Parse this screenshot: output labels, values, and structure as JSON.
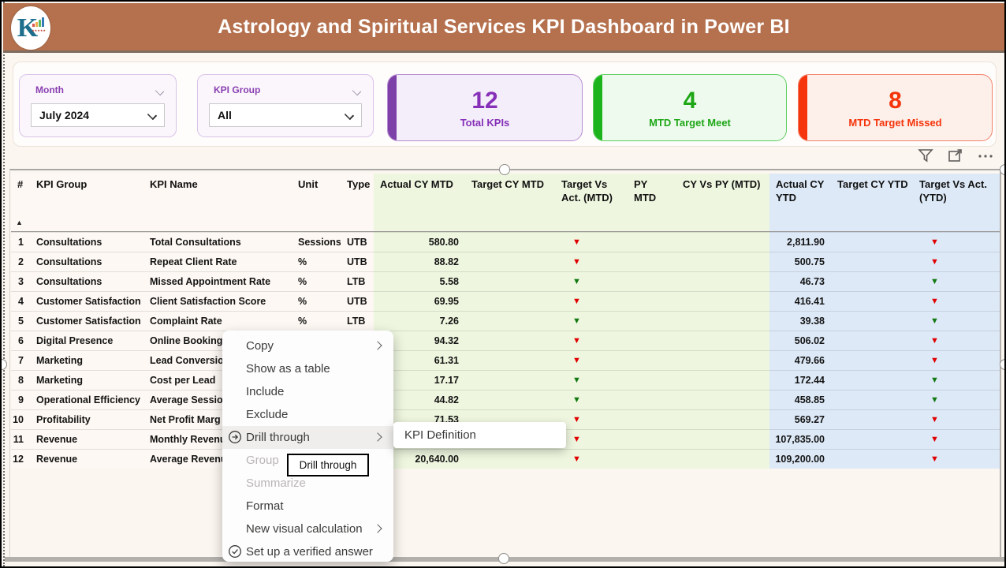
{
  "header": {
    "title": "Astrology and Spiritual Services KPI Dashboard in Power BI",
    "logo_letter": "K",
    "header_bg": "#b5714e"
  },
  "slicers": [
    {
      "label": "Month",
      "value": "July 2024"
    },
    {
      "label": "KPI Group",
      "value": "All"
    }
  ],
  "cards": [
    {
      "value": "12",
      "label": "Total KPIs",
      "accent": "#7d3fa8",
      "text": "#8630b8",
      "bg": "#f4eefa",
      "border": "#b58cd1"
    },
    {
      "value": "4",
      "label": "MTD Target Meet",
      "accent": "#1db31d",
      "text": "#1ea716",
      "bg": "#effaef",
      "border": "#5ecf5e"
    },
    {
      "value": "8",
      "label": "MTD Target Missed",
      "accent": "#f5340c",
      "text": "#f5340c",
      "bg": "#fdefe9",
      "border": "#f2836b"
    }
  ],
  "visual_header_icons": [
    "filter-icon",
    "focus-mode-icon",
    "more-options-icon"
  ],
  "icon_glyphs": {
    "triangle-down": "▼",
    "triangle-up-sort": "▲"
  },
  "table": {
    "columns": [
      "#",
      "KPI Group",
      "KPI Name",
      "Unit",
      "Type",
      "Actual CY MTD",
      "Target CY MTD",
      "Target Vs Act. (MTD)",
      "PY MTD",
      "CY Vs PY (MTD)",
      "Actual CY YTD",
      "Target CY YTD",
      "Target Vs Act. (YTD)"
    ],
    "sort_column": "#",
    "rows": [
      {
        "num": "1",
        "group": "Consultations",
        "name": "Total Consultations",
        "unit": "Sessions",
        "type": "UTB",
        "actual_mtd": "580.80",
        "target_mtd": "",
        "tva_mtd": "red",
        "py_mtd": "",
        "cy_vs_py": "",
        "actual_ytd": "2,811.90",
        "target_ytd": "",
        "tva_ytd": "red"
      },
      {
        "num": "2",
        "group": "Consultations",
        "name": "Repeat Client Rate",
        "unit": "%",
        "type": "UTB",
        "actual_mtd": "88.82",
        "target_mtd": "",
        "tva_mtd": "red",
        "py_mtd": "",
        "cy_vs_py": "",
        "actual_ytd": "500.75",
        "target_ytd": "",
        "tva_ytd": "red"
      },
      {
        "num": "3",
        "group": "Consultations",
        "name": "Missed Appointment Rate",
        "unit": "%",
        "type": "LTB",
        "actual_mtd": "5.58",
        "target_mtd": "",
        "tva_mtd": "green",
        "py_mtd": "",
        "cy_vs_py": "",
        "actual_ytd": "46.73",
        "target_ytd": "",
        "tva_ytd": "green"
      },
      {
        "num": "4",
        "group": "Customer Satisfaction",
        "name": "Client Satisfaction Score",
        "unit": "%",
        "type": "UTB",
        "actual_mtd": "69.95",
        "target_mtd": "",
        "tva_mtd": "red",
        "py_mtd": "",
        "cy_vs_py": "",
        "actual_ytd": "416.41",
        "target_ytd": "",
        "tva_ytd": "red"
      },
      {
        "num": "5",
        "group": "Customer Satisfaction",
        "name": "Complaint Rate",
        "unit": "%",
        "type": "LTB",
        "actual_mtd": "7.26",
        "target_mtd": "",
        "tva_mtd": "green",
        "py_mtd": "",
        "cy_vs_py": "",
        "actual_ytd": "39.38",
        "target_ytd": "",
        "tva_ytd": "green"
      },
      {
        "num": "6",
        "group": "Digital Presence",
        "name": "Online Booking",
        "unit": "",
        "type": "",
        "actual_mtd": "94.32",
        "target_mtd": "",
        "tva_mtd": "red",
        "py_mtd": "",
        "cy_vs_py": "",
        "actual_ytd": "506.02",
        "target_ytd": "",
        "tva_ytd": "red"
      },
      {
        "num": "7",
        "group": "Marketing",
        "name": "Lead Conversio",
        "unit": "",
        "type": "",
        "actual_mtd": "61.31",
        "target_mtd": "",
        "tva_mtd": "red",
        "py_mtd": "",
        "cy_vs_py": "",
        "actual_ytd": "479.66",
        "target_ytd": "",
        "tva_ytd": "red"
      },
      {
        "num": "8",
        "group": "Marketing",
        "name": "Cost per Lead",
        "unit": "",
        "type": "",
        "actual_mtd": "17.17",
        "target_mtd": "",
        "tva_mtd": "green",
        "py_mtd": "",
        "cy_vs_py": "",
        "actual_ytd": "172.44",
        "target_ytd": "",
        "tva_ytd": "green"
      },
      {
        "num": "9",
        "group": "Operational Efficiency",
        "name": "Average Sessio",
        "unit": "",
        "type": "",
        "actual_mtd": "44.82",
        "target_mtd": "",
        "tva_mtd": "green",
        "py_mtd": "",
        "cy_vs_py": "",
        "actual_ytd": "458.85",
        "target_ytd": "",
        "tva_ytd": "green"
      },
      {
        "num": "10",
        "group": "Profitability",
        "name": "Net Profit Marg",
        "unit": "",
        "type": "",
        "actual_mtd": "71.53",
        "target_mtd": "",
        "tva_mtd": "red",
        "py_mtd": "",
        "cy_vs_py": "",
        "actual_ytd": "569.27",
        "target_ytd": "",
        "tva_ytd": "red"
      },
      {
        "num": "11",
        "group": "Revenue",
        "name": "Monthly Revenu",
        "unit": "",
        "type": "",
        "actual_mtd": "",
        "target_mtd": "",
        "tva_mtd": "red",
        "py_mtd": "",
        "cy_vs_py": "",
        "actual_ytd": "107,835.00",
        "target_ytd": "",
        "tva_ytd": "red"
      },
      {
        "num": "12",
        "group": "Revenue",
        "name": "Average Revenu",
        "unit": "",
        "type": "",
        "actual_mtd": "20,640.00",
        "target_mtd": "",
        "tva_mtd": "red",
        "py_mtd": "",
        "cy_vs_py": "",
        "actual_ytd": "109,200.00",
        "target_ytd": "",
        "tva_ytd": "red"
      }
    ]
  },
  "context_menu": {
    "items": [
      {
        "label": "Copy",
        "submenu": true
      },
      {
        "label": "Show as a table"
      },
      {
        "label": "Include"
      },
      {
        "label": "Exclude"
      },
      {
        "label": "Drill through",
        "submenu": true,
        "icon": "drill-through-icon",
        "highlighted": true
      },
      {
        "label": "Group",
        "disabled": true
      },
      {
        "label": "Summarize",
        "disabled": true
      },
      {
        "label": "Format"
      },
      {
        "label": "New visual calculation",
        "submenu": true
      },
      {
        "label": "Set up a verified answer",
        "icon": "verified-answer-icon"
      }
    ],
    "submenu_item": "KPI Definition",
    "tooltip": "Drill through"
  }
}
